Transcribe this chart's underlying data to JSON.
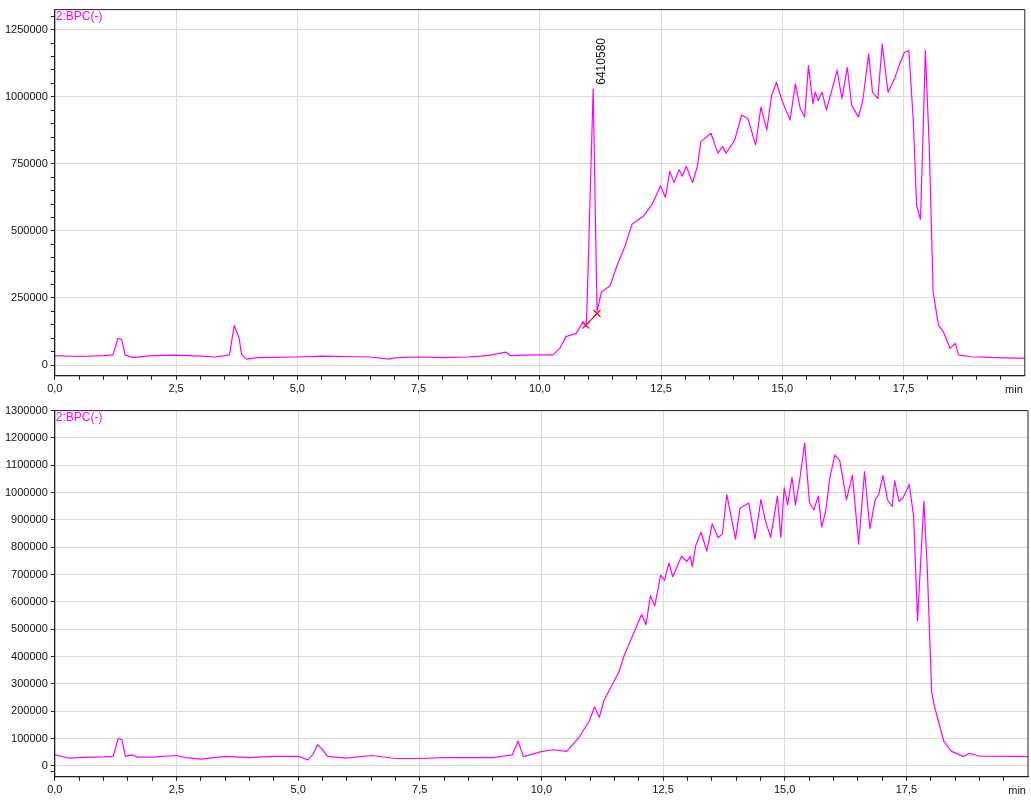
{
  "chart_data": [
    {
      "type": "line",
      "xlabel": "min",
      "legend": "top left",
      "grid": true,
      "marker": "none",
      "line_style": "solid",
      "xlim": [
        0,
        20
      ],
      "ylim": [
        -40000,
        1325000
      ],
      "xticks": [
        {
          "value": 0,
          "label": "0,0"
        },
        {
          "value": 0.5,
          "label": null
        },
        {
          "value": 1,
          "label": null
        },
        {
          "value": 1.5,
          "label": null
        },
        {
          "value": 2,
          "label": null
        },
        {
          "value": 2.5,
          "label": "2,5"
        },
        {
          "value": 3,
          "label": null
        },
        {
          "value": 3.5,
          "label": null
        },
        {
          "value": 4,
          "label": null
        },
        {
          "value": 4.5,
          "label": null
        },
        {
          "value": 5,
          "label": "5,0"
        },
        {
          "value": 5.5,
          "label": null
        },
        {
          "value": 6,
          "label": null
        },
        {
          "value": 6.5,
          "label": null
        },
        {
          "value": 7,
          "label": null
        },
        {
          "value": 7.5,
          "label": "7,5"
        },
        {
          "value": 8,
          "label": null
        },
        {
          "value": 8.5,
          "label": null
        },
        {
          "value": 9,
          "label": null
        },
        {
          "value": 9.5,
          "label": null
        },
        {
          "value": 10,
          "label": "10,0"
        },
        {
          "value": 10.5,
          "label": null
        },
        {
          "value": 11,
          "label": null
        },
        {
          "value": 11.5,
          "label": null
        },
        {
          "value": 12,
          "label": null
        },
        {
          "value": 12.5,
          "label": "12,5"
        },
        {
          "value": 13,
          "label": null
        },
        {
          "value": 13.5,
          "label": null
        },
        {
          "value": 14,
          "label": null
        },
        {
          "value": 14.5,
          "label": null
        },
        {
          "value": 15,
          "label": "15,0"
        },
        {
          "value": 15.5,
          "label": null
        },
        {
          "value": 16,
          "label": null
        },
        {
          "value": 16.5,
          "label": null
        },
        {
          "value": 17,
          "label": null
        },
        {
          "value": 17.5,
          "label": "17,5"
        },
        {
          "value": 18,
          "label": null
        },
        {
          "value": 18.5,
          "label": null
        },
        {
          "value": 19,
          "label": null
        },
        {
          "value": 19.5,
          "label": null
        }
      ],
      "yticks": [
        0,
        {
          "value": 50000,
          "label": null
        },
        {
          "value": 100000,
          "label": null
        },
        {
          "value": 150000,
          "label": null
        },
        {
          "value": 200000,
          "label": null
        },
        250000,
        {
          "value": 300000,
          "label": null
        },
        {
          "value": 350000,
          "label": null
        },
        {
          "value": 400000,
          "label": null
        },
        {
          "value": 450000,
          "label": null
        },
        500000,
        {
          "value": 550000,
          "label": null
        },
        {
          "value": 600000,
          "label": null
        },
        {
          "value": 650000,
          "label": null
        },
        {
          "value": 700000,
          "label": null
        },
        750000,
        {
          "value": 800000,
          "label": null
        },
        {
          "value": 850000,
          "label": null
        },
        {
          "value": 900000,
          "label": null
        },
        {
          "value": 950000,
          "label": null
        },
        1000000,
        {
          "value": 1050000,
          "label": null
        },
        {
          "value": 1100000,
          "label": null
        },
        {
          "value": 1150000,
          "label": null
        },
        {
          "value": 1200000,
          "label": null
        },
        1250000,
        {
          "value": 1300000,
          "label": null
        }
      ],
      "annotations": [
        {
          "text": "6410580",
          "x": 11.1,
          "y": 1030000
        }
      ],
      "series": [
        {
          "name": "2:BPC(-)",
          "color": "#ff00ff",
          "x": [
            0,
            0.5,
            1.0,
            1.2,
            1.3,
            1.38,
            1.45,
            1.6,
            2.0,
            2.5,
            3.0,
            3.3,
            3.5,
            3.6,
            3.7,
            3.8,
            3.85,
            3.95,
            4.2,
            5.0,
            5.5,
            6.0,
            6.5,
            6.9,
            7.0,
            7.5,
            8.0,
            8.5,
            8.8,
            9.0,
            9.3,
            9.4,
            9.85,
            10.27,
            10.41,
            10.54,
            10.75,
            10.89,
            10.95,
            10.97,
            11.1,
            11.18,
            11.27,
            11.45,
            11.59,
            11.76,
            11.9,
            12.14,
            12.32,
            12.49,
            12.59,
            12.68,
            12.77,
            12.87,
            12.94,
            13.02,
            13.15,
            13.25,
            13.32,
            13.53,
            13.67,
            13.77,
            13.84,
            14.02,
            14.16,
            14.29,
            14.45,
            14.56,
            14.68,
            14.78,
            14.88,
            14.98,
            15.16,
            15.27,
            15.37,
            15.46,
            15.54,
            15.63,
            15.68,
            15.74,
            15.82,
            15.91,
            16.0,
            16.13,
            16.23,
            16.34,
            16.43,
            16.57,
            16.66,
            16.78,
            16.86,
            16.97,
            17.06,
            17.18,
            17.31,
            17.42,
            17.52,
            17.61,
            17.7,
            17.77,
            17.85,
            17.91,
            17.95,
            18.03,
            18.11,
            18.22,
            18.32,
            18.46,
            18.57,
            18.63,
            18.88,
            19.57,
            20.0
          ],
          "values": [
            35000,
            32000,
            35000,
            38000,
            100000,
            95000,
            38000,
            28000,
            35000,
            37000,
            33000,
            30000,
            35000,
            38000,
            148000,
            100000,
            40000,
            22000,
            28000,
            30000,
            33000,
            32000,
            30000,
            22000,
            27000,
            30000,
            28000,
            30000,
            33000,
            38000,
            48000,
            35000,
            38000,
            38000,
            62000,
            106000,
            118000,
            161000,
            143000,
            200000,
            1030000,
            200000,
            272000,
            296000,
            370000,
            445000,
            525000,
            556000,
            600000,
            668000,
            625000,
            722000,
            680000,
            728000,
            704000,
            741000,
            680000,
            741000,
            833000,
            864000,
            790000,
            815000,
            790000,
            839000,
            932000,
            919000,
            821000,
            962000,
            876000,
            1005000,
            1054000,
            993000,
            913000,
            1048000,
            956000,
            925000,
            1116000,
            974000,
            1017000,
            986000,
            1017000,
            950000,
            1011000,
            1098000,
            993000,
            1110000,
            968000,
            925000,
            986000,
            1160000,
            1017000,
            993000,
            1197000,
            1017000,
            1066000,
            1122000,
            1166000,
            1172000,
            913000,
            593000,
            543000,
            913000,
            1172000,
            814000,
            272000,
            149000,
            124000,
            62000,
            81000,
            38000,
            31000,
            27000,
            25000
          ]
        },
        {
          "type": "line",
          "color": "#ff0000",
          "marker": "cross",
          "x": [
            10.95,
            11.18
          ],
          "values": [
            149000,
            192000
          ]
        }
      ]
    },
    {
      "type": "line",
      "xlabel": "min",
      "legend": "top left",
      "grid": true,
      "marker": "none",
      "line_style": "solid",
      "xlim": [
        0,
        20
      ],
      "ylim": [
        -40000,
        1300000
      ],
      "xticks": [
        {
          "value": 0,
          "label": "0,0"
        },
        {
          "value": 0.5,
          "label": null
        },
        {
          "value": 1,
          "label": null
        },
        {
          "value": 1.5,
          "label": null
        },
        {
          "value": 2,
          "label": null
        },
        {
          "value": 2.5,
          "label": "2,5"
        },
        {
          "value": 3,
          "label": null
        },
        {
          "value": 3.5,
          "label": null
        },
        {
          "value": 4,
          "label": null
        },
        {
          "value": 4.5,
          "label": null
        },
        {
          "value": 5,
          "label": "5,0"
        },
        {
          "value": 5.5,
          "label": null
        },
        {
          "value": 6,
          "label": null
        },
        {
          "value": 6.5,
          "label": null
        },
        {
          "value": 7,
          "label": null
        },
        {
          "value": 7.5,
          "label": "7,5"
        },
        {
          "value": 8,
          "label": null
        },
        {
          "value": 8.5,
          "label": null
        },
        {
          "value": 9,
          "label": null
        },
        {
          "value": 9.5,
          "label": null
        },
        {
          "value": 10,
          "label": "10,0"
        },
        {
          "value": 10.5,
          "label": null
        },
        {
          "value": 11,
          "label": null
        },
        {
          "value": 11.5,
          "label": null
        },
        {
          "value": 12,
          "label": null
        },
        {
          "value": 12.5,
          "label": "12,5"
        },
        {
          "value": 13,
          "label": null
        },
        {
          "value": 13.5,
          "label": null
        },
        {
          "value": 14,
          "label": null
        },
        {
          "value": 14.5,
          "label": null
        },
        {
          "value": 15,
          "label": "15,0"
        },
        {
          "value": 15.5,
          "label": null
        },
        {
          "value": 16,
          "label": null
        },
        {
          "value": 16.5,
          "label": null
        },
        {
          "value": 17,
          "label": null
        },
        {
          "value": 17.5,
          "label": "17,5"
        },
        {
          "value": 18,
          "label": null
        },
        {
          "value": 18.5,
          "label": null
        },
        {
          "value": 19,
          "label": null
        },
        {
          "value": 19.5,
          "label": null
        }
      ],
      "yticks": [
        {
          "value": -20000,
          "label": null
        },
        0,
        100000,
        200000,
        300000,
        400000,
        500000,
        600000,
        700000,
        800000,
        900000,
        1000000,
        1100000,
        1200000,
        1300000
      ],
      "series": [
        {
          "name": "2:BPC(-)",
          "color": "#ff00ff",
          "x": [
            0,
            0.3,
            0.5,
            1.0,
            1.2,
            1.3,
            1.38,
            1.45,
            1.6,
            1.7,
            2.0,
            2.5,
            2.7,
            3.0,
            3.5,
            4.0,
            4.5,
            5.0,
            5.2,
            5.3,
            5.4,
            5.5,
            5.6,
            6.0,
            6.5,
            7.0,
            7.5,
            8.0,
            8.5,
            9.0,
            9.4,
            9.52,
            9.63,
            10.02,
            10.24,
            10.52,
            10.77,
            10.99,
            11.09,
            11.19,
            11.29,
            11.42,
            11.6,
            11.7,
            11.88,
            12.06,
            12.15,
            12.24,
            12.33,
            12.45,
            12.53,
            12.62,
            12.7,
            12.88,
            12.99,
            13.06,
            13.1,
            13.17,
            13.28,
            13.4,
            13.51,
            13.63,
            13.72,
            13.81,
            13.99,
            14.08,
            14.26,
            14.39,
            14.51,
            14.6,
            14.71,
            14.85,
            14.92,
            14.99,
            15.06,
            15.15,
            15.22,
            15.31,
            15.41,
            15.51,
            15.6,
            15.69,
            15.76,
            15.84,
            15.93,
            16.03,
            16.13,
            16.27,
            16.39,
            16.52,
            16.64,
            16.75,
            16.86,
            16.93,
            17.02,
            17.11,
            17.21,
            17.26,
            17.35,
            17.43,
            17.56,
            17.65,
            17.73,
            17.86,
            17.93,
            18.02,
            18.07,
            18.27,
            18.43,
            18.68,
            18.79,
            19.0,
            20.0
          ],
          "values": [
            40000,
            28000,
            30000,
            33000,
            35000,
            100000,
            95000,
            35000,
            40000,
            32000,
            32000,
            38000,
            30000,
            25000,
            35000,
            30000,
            35000,
            35000,
            22000,
            40000,
            78000,
            60000,
            35000,
            28000,
            38000,
            27000,
            27000,
            30000,
            30000,
            30000,
            40000,
            90000,
            34000,
            53000,
            59000,
            53000,
            103000,
            166000,
            216000,
            178000,
            241000,
            285000,
            347000,
            404000,
            479000,
            554000,
            516000,
            623000,
            585000,
            698000,
            679000,
            742000,
            692000,
            767000,
            748000,
            767000,
            729000,
            805000,
            855000,
            786000,
            886000,
            836000,
            848000,
            993000,
            830000,
            943000,
            962000,
            830000,
            974000,
            899000,
            836000,
            987000,
            836000,
            1018000,
            955000,
            1056000,
            955000,
            1049000,
            1181000,
            962000,
            937000,
            987000,
            874000,
            930000,
            1056000,
            1137000,
            1118000,
            974000,
            1064000,
            811000,
            1077000,
            868000,
            974000,
            993000,
            1062000,
            974000,
            949000,
            1043000,
            968000,
            980000,
            1030000,
            912000,
            530000,
            968000,
            723000,
            272000,
            222000,
            90000,
            53000,
            34000,
            46000,
            36000,
            34000
          ]
        }
      ]
    }
  ]
}
